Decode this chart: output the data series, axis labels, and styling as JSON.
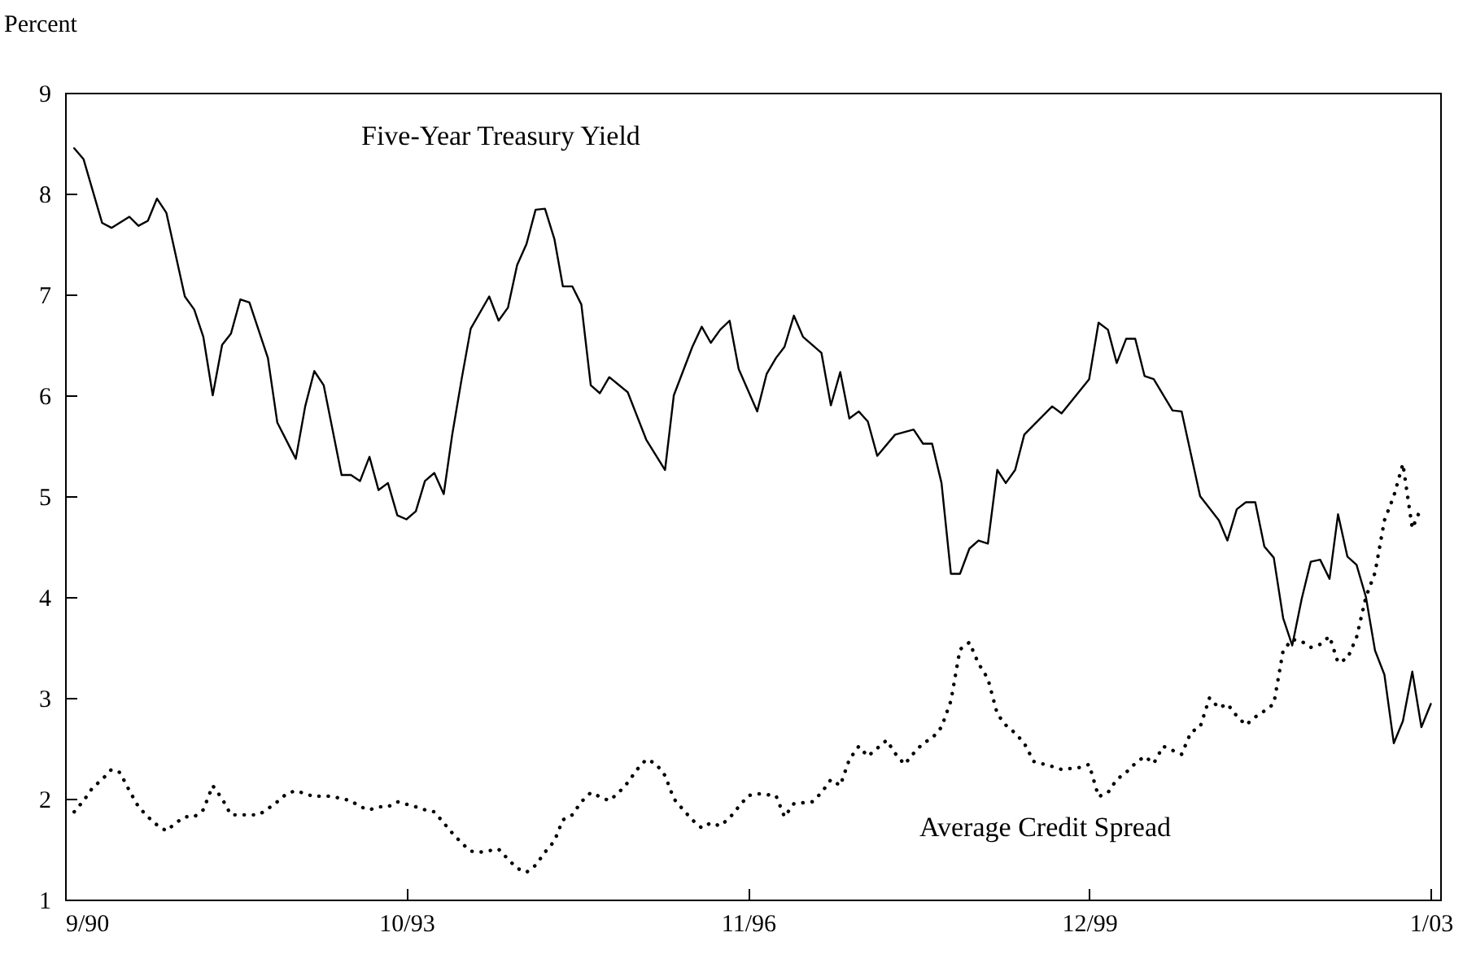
{
  "chart_data": {
    "type": "line",
    "ylabel": "Percent",
    "xlim": [
      "1990-09",
      "2003-02"
    ],
    "ylim": [
      1,
      9
    ],
    "yticks": [
      1,
      2,
      3,
      4,
      5,
      6,
      7,
      8,
      9
    ],
    "xticks": [
      {
        "value": "1990-09",
        "label": "9/90"
      },
      {
        "value": "1993-10",
        "label": "10/93"
      },
      {
        "value": "1996-11",
        "label": "11/96"
      },
      {
        "value": "1999-12",
        "label": "12/99"
      },
      {
        "value": "2003-01",
        "label": "1/03"
      }
    ],
    "grid": false,
    "series": [
      {
        "name": "Five-Year Treasury Yield",
        "color": "#000000",
        "line_style": "solid",
        "x": [
          "1990-10",
          "1990-11",
          "1991-01",
          "1991-02",
          "1991-04",
          "1991-05",
          "1991-06",
          "1991-07",
          "1991-08",
          "1991-10",
          "1991-11",
          "1991-12",
          "1992-01",
          "1992-02",
          "1992-03",
          "1992-04",
          "1992-05",
          "1992-07",
          "1992-08",
          "1992-10",
          "1992-11",
          "1992-12",
          "1993-01",
          "1993-03",
          "1993-04",
          "1993-05",
          "1993-06",
          "1993-07",
          "1993-08",
          "1993-09",
          "1993-10",
          "1993-11",
          "1993-12",
          "1994-01",
          "1994-02",
          "1994-03",
          "1994-04",
          "1994-05",
          "1994-07",
          "1994-08",
          "1994-09",
          "1994-10",
          "1994-11",
          "1994-12",
          "1995-01",
          "1995-02",
          "1995-03",
          "1995-04",
          "1995-05",
          "1995-06",
          "1995-07",
          "1995-08",
          "1995-10",
          "1995-12",
          "1996-02",
          "1996-03",
          "1996-05",
          "1996-06",
          "1996-07",
          "1996-08",
          "1996-09",
          "1996-10",
          "1996-12",
          "1997-01",
          "1997-02",
          "1997-03",
          "1997-04",
          "1997-05",
          "1997-07",
          "1997-08",
          "1997-09",
          "1997-10",
          "1997-11",
          "1997-12",
          "1998-01",
          "1998-03",
          "1998-05",
          "1998-06",
          "1998-07",
          "1998-08",
          "1998-09",
          "1998-10",
          "1998-11",
          "1998-12",
          "1999-01",
          "1999-02",
          "1999-03",
          "1999-04",
          "1999-05",
          "1999-08",
          "1999-09",
          "1999-12",
          "2000-01",
          "2000-02",
          "2000-03",
          "2000-04",
          "2000-05",
          "2000-06",
          "2000-07",
          "2000-09",
          "2000-10",
          "2000-12",
          "2001-02",
          "2001-03",
          "2001-04",
          "2001-05",
          "2001-06",
          "2001-07",
          "2001-08",
          "2001-09",
          "2001-10",
          "2001-11",
          "2001-12",
          "2002-01",
          "2002-02",
          "2002-03",
          "2002-04",
          "2002-05",
          "2002-06",
          "2002-07",
          "2002-08",
          "2002-09",
          "2002-10",
          "2002-11",
          "2002-12",
          "2003-01"
        ],
        "values": [
          8.45,
          8.34,
          7.71,
          7.66,
          7.77,
          7.68,
          7.73,
          7.95,
          7.81,
          6.98,
          6.85,
          6.58,
          6.0,
          6.5,
          6.61,
          6.95,
          6.92,
          6.37,
          5.73,
          5.37,
          5.89,
          6.24,
          6.1,
          5.21,
          5.21,
          5.15,
          5.39,
          5.06,
          5.13,
          4.81,
          4.77,
          4.85,
          5.15,
          5.23,
          5.02,
          5.61,
          6.16,
          6.66,
          6.98,
          6.74,
          6.87,
          7.29,
          7.5,
          7.84,
          7.85,
          7.55,
          7.08,
          7.08,
          6.9,
          6.1,
          6.02,
          6.18,
          6.03,
          5.56,
          5.26,
          6.0,
          6.48,
          6.68,
          6.52,
          6.65,
          6.74,
          6.26,
          5.84,
          6.21,
          6.37,
          6.48,
          6.79,
          6.58,
          6.42,
          5.9,
          6.23,
          5.77,
          5.84,
          5.74,
          5.4,
          5.61,
          5.66,
          5.52,
          5.52,
          5.13,
          4.23,
          4.23,
          4.48,
          4.56,
          4.53,
          5.26,
          5.13,
          5.26,
          5.61,
          5.89,
          5.82,
          6.16,
          6.72,
          6.65,
          6.32,
          6.56,
          6.56,
          6.19,
          6.16,
          5.85,
          5.84,
          5.0,
          4.76,
          4.56,
          4.87,
          4.94,
          4.94,
          4.5,
          4.39,
          3.79,
          3.52,
          3.98,
          4.35,
          4.37,
          4.18,
          4.82,
          4.4,
          4.32,
          4.0,
          3.47,
          3.23,
          2.55,
          2.77,
          3.26,
          2.71,
          2.94
        ]
      },
      {
        "name": "Average Credit Spread",
        "color": "#000000",
        "line_style": "dotted",
        "x": [
          "1990-10",
          "1990-11",
          "1990-12",
          "1991-01",
          "1991-02",
          "1991-03",
          "1991-04",
          "1991-05",
          "1991-06",
          "1991-07",
          "1991-08",
          "1991-09",
          "1991-10",
          "1991-11",
          "1991-12",
          "1992-01",
          "1992-02",
          "1992-03",
          "1992-05",
          "1992-06",
          "1992-07",
          "1992-08",
          "1992-09",
          "1992-10",
          "1992-12",
          "1993-01",
          "1993-02",
          "1993-04",
          "1993-05",
          "1993-06",
          "1993-07",
          "1993-08",
          "1993-09",
          "1993-11",
          "1993-12",
          "1994-01",
          "1994-02",
          "1994-03",
          "1994-04",
          "1994-05",
          "1994-06",
          "1994-08",
          "1994-09",
          "1994-10",
          "1994-11",
          "1994-12",
          "1995-01",
          "1995-02",
          "1995-03",
          "1995-04",
          "1995-05",
          "1995-06",
          "1995-07",
          "1995-08",
          "1995-09",
          "1995-10",
          "1995-11",
          "1995-12",
          "1996-01",
          "1996-02",
          "1996-03",
          "1996-04",
          "1996-05",
          "1996-06",
          "1996-07",
          "1996-08",
          "1996-09",
          "1996-10",
          "1996-11",
          "1996-12",
          "1997-02",
          "1997-03",
          "1997-04",
          "1997-06",
          "1997-07",
          "1997-08",
          "1997-09",
          "1997-10",
          "1997-11",
          "1997-12",
          "1998-01",
          "1998-02",
          "1998-03",
          "1998-04",
          "1998-05",
          "1998-06",
          "1998-07",
          "1998-08",
          "1998-09",
          "1998-10",
          "1998-11",
          "1998-12",
          "1999-01",
          "1999-02",
          "1999-03",
          "1999-04",
          "1999-05",
          "1999-06",
          "1999-08",
          "1999-09",
          "1999-11",
          "1999-12",
          "2000-01",
          "2000-02",
          "2000-03",
          "2000-04",
          "2000-05",
          "2000-06",
          "2000-07",
          "2000-08",
          "2000-10",
          "2000-11",
          "2000-12",
          "2001-01",
          "2001-02",
          "2001-03",
          "2001-04",
          "2001-05",
          "2001-06",
          "2001-07",
          "2001-08",
          "2001-09",
          "2001-10",
          "2001-11",
          "2001-12",
          "2002-01",
          "2002-02",
          "2002-03",
          "2002-04",
          "2002-05",
          "2002-06",
          "2002-07",
          "2002-08",
          "2002-09",
          "2002-10",
          "2002-11",
          "2002-12"
        ],
        "values": [
          1.87,
          1.98,
          2.11,
          2.19,
          2.29,
          2.26,
          2.08,
          1.92,
          1.82,
          1.74,
          1.68,
          1.76,
          1.82,
          1.82,
          1.89,
          2.13,
          2.0,
          1.84,
          1.84,
          1.84,
          1.9,
          1.97,
          2.05,
          2.08,
          2.02,
          2.03,
          2.02,
          1.98,
          1.92,
          1.89,
          1.92,
          1.92,
          1.97,
          1.92,
          1.89,
          1.87,
          1.76,
          1.66,
          1.56,
          1.48,
          1.47,
          1.5,
          1.4,
          1.31,
          1.27,
          1.34,
          1.47,
          1.58,
          1.79,
          1.84,
          1.97,
          2.06,
          2.02,
          1.98,
          2.06,
          2.16,
          2.29,
          2.39,
          2.35,
          2.23,
          2.0,
          1.89,
          1.79,
          1.71,
          1.76,
          1.73,
          1.81,
          1.92,
          2.03,
          2.05,
          2.03,
          1.82,
          1.95,
          1.97,
          2.06,
          2.19,
          2.13,
          2.39,
          2.52,
          2.42,
          2.5,
          2.58,
          2.45,
          2.34,
          2.45,
          2.55,
          2.6,
          2.71,
          2.97,
          3.48,
          3.55,
          3.34,
          3.19,
          2.84,
          2.73,
          2.65,
          2.55,
          2.37,
          2.32,
          2.29,
          2.31,
          2.34,
          2.02,
          2.06,
          2.19,
          2.26,
          2.35,
          2.42,
          2.35,
          2.52,
          2.44,
          2.66,
          2.71,
          3.0,
          2.9,
          2.94,
          2.82,
          2.73,
          2.81,
          2.87,
          2.94,
          3.47,
          3.58,
          3.56,
          3.5,
          3.53,
          3.61,
          3.35,
          3.39,
          3.6,
          4.0,
          4.24,
          4.76,
          5.0,
          5.32,
          4.68,
          4.89
        ]
      }
    ]
  }
}
